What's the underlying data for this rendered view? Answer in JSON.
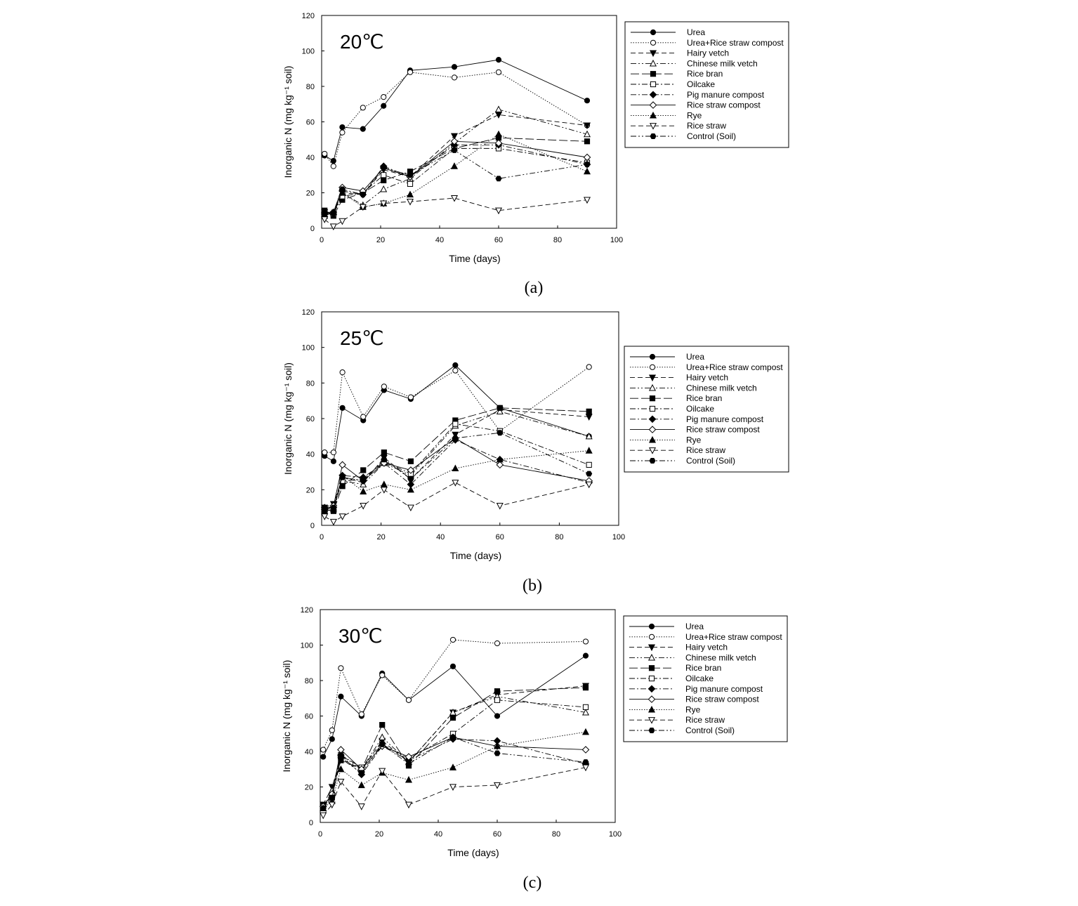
{
  "chart_data": [
    {
      "type": "line",
      "panel_label": "(a)",
      "annotation": "20℃",
      "xlabel": "Time (days)",
      "ylabel": "Inorganic N (mg kg⁻¹ soil)",
      "xlim": [
        0,
        100
      ],
      "ylim": [
        0,
        120
      ],
      "xticks": [
        0,
        20,
        40,
        60,
        80,
        100
      ],
      "yticks": [
        0,
        20,
        40,
        60,
        80,
        100,
        120
      ],
      "grid": false,
      "legend": "right",
      "x": [
        1,
        4,
        7,
        14,
        21,
        30,
        45,
        60,
        90
      ],
      "series": [
        {
          "name": "Urea",
          "values": [
            41,
            38,
            57,
            56,
            69,
            89,
            91,
            95,
            72
          ]
        },
        {
          "name": "Urea+Rice straw compost",
          "values": [
            42,
            35,
            54,
            68,
            74,
            88,
            85,
            88,
            58
          ]
        },
        {
          "name": "Hairy vetch",
          "values": [
            9,
            8,
            20,
            19,
            33,
            29,
            52,
            64,
            58
          ]
        },
        {
          "name": "Chinese milk vetch",
          "values": [
            7,
            9,
            20,
            13,
            22,
            28,
            48,
            67,
            53
          ]
        },
        {
          "name": "Rice bran",
          "values": [
            10,
            7,
            16,
            20,
            27,
            32,
            45,
            51,
            49
          ]
        },
        {
          "name": "Oilcake",
          "values": [
            9,
            8,
            18,
            20,
            30,
            25,
            45,
            45,
            37
          ]
        },
        {
          "name": "Pig manure compost",
          "values": [
            8,
            8,
            21,
            19,
            35,
            29,
            47,
            47,
            36
          ]
        },
        {
          "name": "Rice straw compost",
          "values": [
            9,
            9,
            23,
            21,
            34,
            29,
            49,
            48,
            40
          ]
        },
        {
          "name": "Rye",
          "values": [
            8,
            9,
            20,
            12,
            14,
            19,
            35,
            53,
            32
          ]
        },
        {
          "name": "Rice straw",
          "values": [
            5,
            1,
            4,
            12,
            14,
            15,
            17,
            10,
            16
          ]
        },
        {
          "name": "Control (Soil)",
          "values": [
            9,
            9,
            22,
            19,
            34,
            30,
            44,
            28,
            36
          ]
        }
      ]
    },
    {
      "type": "line",
      "panel_label": "(b)",
      "annotation": "25℃",
      "xlabel": "Time (days)",
      "ylabel": "Inorganic N (mg kg⁻¹ soil)",
      "xlim": [
        0,
        100
      ],
      "ylim": [
        0,
        120
      ],
      "xticks": [
        0,
        20,
        40,
        60,
        80,
        100
      ],
      "yticks": [
        0,
        20,
        40,
        60,
        80,
        100,
        120
      ],
      "grid": false,
      "legend": "right",
      "x": [
        1,
        4,
        7,
        14,
        21,
        30,
        45,
        60,
        90
      ],
      "series": [
        {
          "name": "Urea",
          "values": [
            39,
            36,
            66,
            59,
            76,
            71,
            90,
            66,
            50
          ]
        },
        {
          "name": "Urea+Rice straw compost",
          "values": [
            41,
            41,
            86,
            61,
            78,
            72,
            87,
            53,
            89
          ]
        },
        {
          "name": "Hairy vetch",
          "values": [
            10,
            12,
            27,
            24,
            38,
            26,
            51,
            65,
            61
          ]
        },
        {
          "name": "Chinese milk vetch",
          "values": [
            9,
            10,
            25,
            23,
            35,
            28,
            56,
            64,
            50
          ]
        },
        {
          "name": "Rice bran",
          "values": [
            9,
            8,
            22,
            31,
            41,
            36,
            59,
            66,
            64
          ]
        },
        {
          "name": "Oilcake",
          "values": [
            8,
            9,
            25,
            26,
            36,
            29,
            57,
            53,
            34
          ]
        },
        {
          "name": "Pig manure compost",
          "values": [
            10,
            10,
            28,
            27,
            35,
            23,
            48,
            37,
            24
          ]
        },
        {
          "name": "Rice straw compost",
          "values": [
            9,
            11,
            34,
            25,
            35,
            31,
            49,
            34,
            25
          ]
        },
        {
          "name": "Rye",
          "values": [
            8,
            9,
            28,
            19,
            23,
            20,
            32,
            37,
            42
          ]
        },
        {
          "name": "Rice straw",
          "values": [
            5,
            2,
            5,
            11,
            20,
            10,
            24,
            11,
            23
          ]
        },
        {
          "name": "Control (Soil)",
          "values": [
            9,
            10,
            27,
            25,
            37,
            26,
            49,
            52,
            29
          ]
        }
      ]
    },
    {
      "type": "line",
      "panel_label": "(c)",
      "annotation": "30℃",
      "xlabel": "Time (days)",
      "ylabel": "Inorganic N (mg kg⁻¹ soil)",
      "xlim": [
        0,
        100
      ],
      "ylim": [
        0,
        120
      ],
      "xticks": [
        0,
        20,
        40,
        60,
        80,
        100
      ],
      "yticks": [
        0,
        20,
        40,
        60,
        80,
        100,
        120
      ],
      "grid": false,
      "legend": "right",
      "x": [
        1,
        4,
        7,
        14,
        21,
        30,
        45,
        60,
        90
      ],
      "series": [
        {
          "name": "Urea",
          "values": [
            37,
            47,
            71,
            60,
            84,
            69,
            88,
            60,
            94
          ]
        },
        {
          "name": "Urea+Rice straw compost",
          "values": [
            41,
            52,
            87,
            61,
            83,
            69,
            103,
            101,
            102
          ]
        },
        {
          "name": "Hairy vetch",
          "values": [
            10,
            20,
            36,
            30,
            46,
            34,
            62,
            72,
            77
          ]
        },
        {
          "name": "Chinese milk vetch",
          "values": [
            8,
            18,
            38,
            30,
            48,
            34,
            62,
            71,
            62
          ]
        },
        {
          "name": "Rice bran",
          "values": [
            10,
            15,
            35,
            30,
            55,
            32,
            59,
            74,
            76
          ]
        },
        {
          "name": "Oilcake",
          "values": [
            9,
            14,
            38,
            31,
            44,
            36,
            50,
            69,
            65
          ]
        },
        {
          "name": "Pig manure compost",
          "values": [
            9,
            15,
            38,
            27,
            43,
            35,
            47,
            46,
            33
          ]
        },
        {
          "name": "Rice straw compost",
          "values": [
            9,
            16,
            41,
            30,
            43,
            37,
            48,
            43,
            41
          ]
        },
        {
          "name": "Rye",
          "values": [
            8,
            12,
            30,
            21,
            28,
            24,
            31,
            43,
            51
          ]
        },
        {
          "name": "Rice straw",
          "values": [
            4,
            10,
            23,
            9,
            29,
            10,
            20,
            21,
            31
          ]
        },
        {
          "name": "Control (Soil)",
          "values": [
            8,
            14,
            36,
            28,
            44,
            33,
            48,
            39,
            34
          ]
        }
      ]
    }
  ],
  "series_styles": [
    {
      "marker": "circle-filled",
      "line": "solid"
    },
    {
      "marker": "circle-open",
      "line": "dotted"
    },
    {
      "marker": "triangle-down-filled",
      "line": "dashed"
    },
    {
      "marker": "triangle-up-open",
      "line": "dash-dot-dot"
    },
    {
      "marker": "square-filled",
      "line": "long-dash"
    },
    {
      "marker": "square-open",
      "line": "dash-dot"
    },
    {
      "marker": "diamond-filled",
      "line": "dash-dot"
    },
    {
      "marker": "diamond-open",
      "line": "solid"
    },
    {
      "marker": "triangle-up-filled",
      "line": "dotted"
    },
    {
      "marker": "triangle-down-open",
      "line": "dashed"
    },
    {
      "marker": "hexagon-filled",
      "line": "dash-dot-dot"
    }
  ]
}
